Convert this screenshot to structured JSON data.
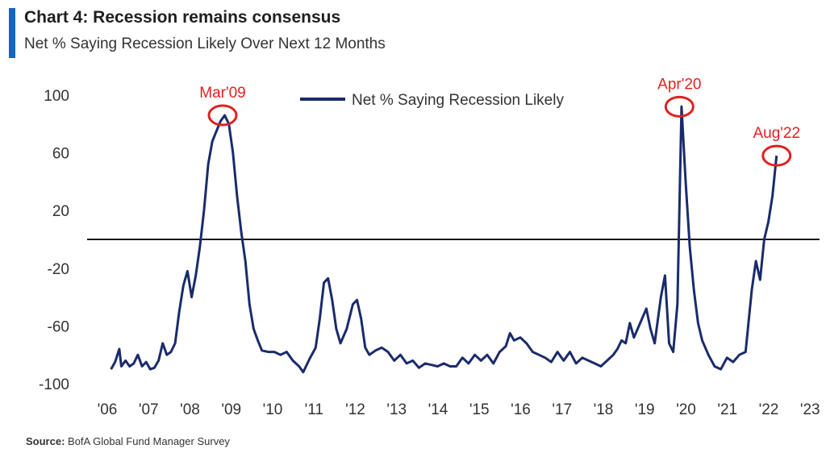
{
  "header": {
    "title": "Chart 4: Recession remains consensus",
    "subtitle": "Net % Saying Recession Likely Over Next 12 Months"
  },
  "footer": {
    "source_label": "Source:",
    "source_text": "BofA Global Fund Manager Survey"
  },
  "colors": {
    "accent": "#1565c0",
    "series": "#1a2b6b",
    "annotation": "#e02020",
    "zero_line": "#1a1a1a"
  },
  "chart_data": {
    "type": "line",
    "title": "Chart 4: Recession remains consensus",
    "subtitle": "Net % Saying Recession Likely Over Next 12 Months",
    "ylim": [
      -100,
      100
    ],
    "xlim": [
      2006,
      2023.6
    ],
    "y_ticks": [
      100,
      60,
      20,
      -20,
      -60,
      -100
    ],
    "x_ticks": [
      2006,
      2007,
      2008,
      2009,
      2010,
      2011,
      2012,
      2013,
      2014,
      2015,
      2016,
      2017,
      2018,
      2019,
      2020,
      2021,
      2022,
      2023
    ],
    "x_tick_labels": [
      "'06",
      "'07",
      "'08",
      "'09",
      "'10",
      "'11",
      "'12",
      "'13",
      "'14",
      "'15",
      "'16",
      "'17",
      "'18",
      "'19",
      "'20",
      "'21",
      "'22",
      "'23"
    ],
    "grid": false,
    "reference_line_y": 0,
    "legend": {
      "position": "top-center",
      "entries": [
        "Net % Saying Recession Likely"
      ]
    },
    "series": [
      {
        "name": "Net % Saying Recession Likely",
        "x": [
          2006.5,
          2006.6,
          2006.7,
          2006.75,
          2006.85,
          2006.95,
          2007.05,
          2007.15,
          2007.25,
          2007.35,
          2007.45,
          2007.55,
          2007.65,
          2007.75,
          2007.85,
          2007.95,
          2008.05,
          2008.15,
          2008.25,
          2008.35,
          2008.45,
          2008.55,
          2008.65,
          2008.75,
          2008.85,
          2008.95,
          2009.05,
          2009.15,
          2009.25,
          2009.35,
          2009.45,
          2009.55,
          2009.65,
          2009.75,
          2009.85,
          2009.95,
          2010.05,
          2010.15,
          2010.3,
          2010.45,
          2010.6,
          2010.75,
          2010.9,
          2011.05,
          2011.15,
          2011.3,
          2011.45,
          2011.55,
          2011.65,
          2011.75,
          2011.85,
          2011.95,
          2012.05,
          2012.2,
          2012.35,
          2012.45,
          2012.55,
          2012.65,
          2012.75,
          2012.9,
          2013.05,
          2013.2,
          2013.35,
          2013.5,
          2013.65,
          2013.8,
          2013.95,
          2014.1,
          2014.25,
          2014.4,
          2014.55,
          2014.7,
          2014.85,
          2015.0,
          2015.15,
          2015.3,
          2015.45,
          2015.6,
          2015.75,
          2015.9,
          2016.05,
          2016.15,
          2016.25,
          2016.4,
          2016.55,
          2016.7,
          2016.85,
          2017.0,
          2017.15,
          2017.3,
          2017.45,
          2017.6,
          2017.75,
          2017.9,
          2018.05,
          2018.2,
          2018.35,
          2018.5,
          2018.65,
          2018.75,
          2018.85,
          2018.95,
          2019.05,
          2019.15,
          2019.3,
          2019.45,
          2019.55,
          2019.65,
          2019.8,
          2019.9,
          2020.0,
          2020.1,
          2020.2,
          2020.3,
          2020.4,
          2020.5,
          2020.6,
          2020.7,
          2020.8,
          2020.95,
          2021.1,
          2021.25,
          2021.4,
          2021.55,
          2021.7,
          2021.85,
          2022.0,
          2022.1,
          2022.2,
          2022.3,
          2022.4,
          2022.5,
          2022.6
        ],
        "y": [
          -90,
          -85,
          -76,
          -88,
          -84,
          -88,
          -86,
          -80,
          -88,
          -85,
          -90,
          -89,
          -84,
          -72,
          -80,
          -78,
          -72,
          -50,
          -32,
          -22,
          -40,
          -25,
          -5,
          20,
          52,
          68,
          75,
          82,
          86,
          80,
          60,
          30,
          5,
          -15,
          -45,
          -62,
          -70,
          -77,
          -78,
          -78,
          -80,
          -78,
          -84,
          -88,
          -92,
          -83,
          -75,
          -55,
          -30,
          -27,
          -42,
          -62,
          -72,
          -62,
          -45,
          -42,
          -55,
          -75,
          -80,
          -77,
          -75,
          -78,
          -84,
          -80,
          -86,
          -84,
          -89,
          -86,
          -87,
          -88,
          -86,
          -88,
          -88,
          -82,
          -86,
          -80,
          -84,
          -80,
          -86,
          -78,
          -74,
          -65,
          -70,
          -68,
          -72,
          -78,
          -80,
          -82,
          -85,
          -78,
          -84,
          -78,
          -86,
          -82,
          -84,
          -86,
          -88,
          -84,
          -80,
          -76,
          -70,
          -72,
          -58,
          -68,
          -58,
          -48,
          -62,
          -72,
          -40,
          -25,
          -72,
          -78,
          -45,
          92,
          40,
          -5,
          -35,
          -58,
          -70,
          -80,
          -88,
          -90,
          -82,
          -85,
          -80,
          -78,
          -35,
          -15,
          -28,
          0,
          12,
          30,
          58
        ]
      }
    ],
    "annotations": [
      {
        "label": "Mar'09",
        "x": 2009.2,
        "y": 86
      },
      {
        "label": "Apr'20",
        "x": 2020.25,
        "y": 92
      },
      {
        "label": "Aug'22",
        "x": 2022.6,
        "y": 58
      }
    ]
  }
}
